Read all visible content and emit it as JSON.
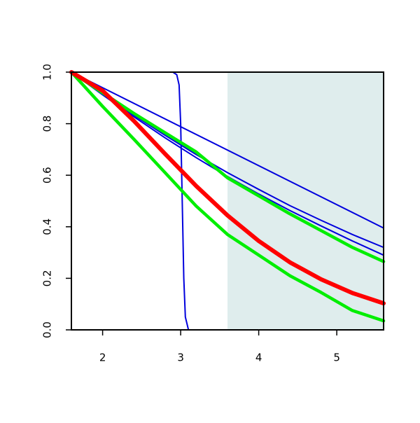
{
  "chart_data": {
    "type": "line",
    "xlim": [
      1.6,
      5.6
    ],
    "ylim": [
      0,
      1
    ],
    "xticks": [
      2,
      3,
      4,
      5
    ],
    "yticks": [
      {
        "value": 0,
        "label": "0.0"
      },
      0.2,
      0.4,
      0.6,
      0.8,
      {
        "value": 1,
        "label": "1.0"
      }
    ],
    "shade_x": [
      3.6,
      5.6
    ],
    "shade_color": "#dfeded",
    "series": [
      {
        "color": "#0000dd",
        "line_width": 2,
        "x": [
          1.6,
          5.6
        ],
        "values": [
          1,
          0.395
        ]
      },
      {
        "color": "#0000dd",
        "line_width": 2,
        "x": [
          1.6,
          2.0,
          2.4,
          2.8,
          3.2,
          3.6,
          4.0,
          4.4,
          4.8,
          5.2,
          5.6
        ],
        "values": [
          1,
          0.915,
          0.833,
          0.755,
          0.68,
          0.61,
          0.545,
          0.482,
          0.425,
          0.37,
          0.32
        ]
      },
      {
        "color": "#0000dd",
        "line_width": 2,
        "x": [
          1.6,
          2.0,
          2.4,
          2.8,
          3.2,
          3.6,
          4.0,
          4.4,
          4.8,
          5.2,
          5.6
        ],
        "values": [
          1,
          0.912,
          0.827,
          0.745,
          0.668,
          0.595,
          0.527,
          0.463,
          0.403,
          0.345,
          0.29
        ]
      },
      {
        "color": "#0000dd",
        "line_width": 2,
        "x": [
          1.6,
          2.9,
          2.95,
          2.98,
          3.0,
          3.02,
          3.04,
          3.06,
          3.1,
          5.6
        ],
        "values": [
          1,
          1,
          0.99,
          0.95,
          0.8,
          0.5,
          0.2,
          0.05,
          0,
          0
        ]
      },
      {
        "color": "#00ee00",
        "line_width": 4.5,
        "x": [
          1.6,
          2.0,
          2.4,
          2.8,
          3.2,
          3.6,
          4.0,
          4.4,
          4.8,
          5.2,
          5.6
        ],
        "values": [
          1,
          0.92,
          0.84,
          0.765,
          0.69,
          0.59,
          0.52,
          0.45,
          0.385,
          0.32,
          0.265
        ]
      },
      {
        "color": "#00ee00",
        "line_width": 4.5,
        "x": [
          1.6,
          2.0,
          2.4,
          2.8,
          3.2,
          3.6,
          4.0,
          4.4,
          4.8,
          5.2,
          5.6
        ],
        "values": [
          1,
          0.867,
          0.74,
          0.61,
          0.48,
          0.37,
          0.29,
          0.21,
          0.145,
          0.075,
          0.035
        ]
      },
      {
        "color": "#ff0000",
        "line_width": 6,
        "x": [
          1.6,
          2.0,
          2.4,
          2.8,
          3.2,
          3.6,
          4.0,
          4.4,
          4.8,
          5.2,
          5.6
        ],
        "values": [
          1,
          0.928,
          0.811,
          0.683,
          0.558,
          0.444,
          0.345,
          0.262,
          0.196,
          0.143,
          0.103
        ]
      }
    ]
  }
}
